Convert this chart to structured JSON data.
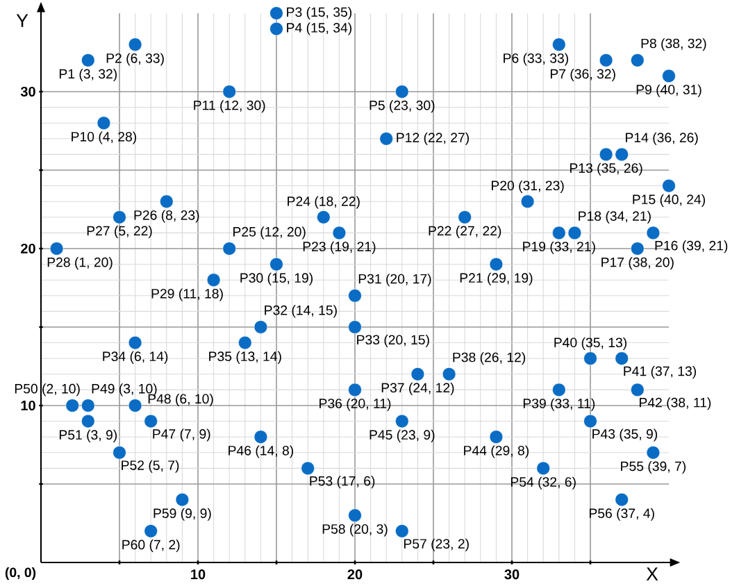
{
  "chart_data": {
    "type": "scatter",
    "xlabel": "X",
    "ylabel": "Y",
    "xlim": [
      0,
      40
    ],
    "ylim": [
      0,
      35
    ],
    "xticks": [
      {
        "value": 5,
        "label": null
      },
      10,
      {
        "value": 15,
        "label": null
      },
      20,
      {
        "value": 25,
        "label": null
      },
      30,
      {
        "value": 35,
        "label": null
      }
    ],
    "yticks": [
      {
        "value": 5,
        "label": null
      },
      10,
      {
        "value": 15,
        "label": null
      },
      20,
      {
        "value": 25,
        "label": null
      },
      30
    ],
    "grid": true,
    "marker": "circle",
    "series": [
      {
        "color": "#0a6cc4",
        "x": [
          3,
          6,
          15,
          15,
          23,
          33,
          36,
          38,
          40,
          4,
          12,
          22,
          36,
          37,
          40,
          39,
          38,
          34,
          33,
          31,
          29,
          27,
          19,
          18,
          12,
          8,
          5,
          1,
          11,
          15,
          20,
          14,
          20,
          6,
          13,
          20,
          24,
          26,
          33,
          35,
          37,
          38,
          35,
          29,
          23,
          14,
          7,
          6,
          3,
          2,
          3,
          5,
          17,
          32,
          39,
          37,
          23,
          20,
          9,
          7
        ],
        "values": [
          32,
          33,
          35,
          34,
          30,
          33,
          32,
          32,
          31,
          28,
          30,
          27,
          26,
          26,
          24,
          21,
          20,
          21,
          21,
          23,
          19,
          22,
          21,
          22,
          20,
          23,
          22,
          20,
          18,
          19,
          17,
          15,
          15,
          14,
          14,
          11,
          12,
          12,
          11,
          13,
          13,
          11,
          9,
          8,
          9,
          8,
          9,
          10,
          10,
          10,
          9,
          7,
          6,
          6,
          7,
          4,
          2,
          3,
          4,
          2
        ]
      }
    ],
    "annotations": [
      {
        "text": "P1 (3, 32)",
        "x": 3,
        "y": 32
      },
      {
        "text": "P2 (6, 33)",
        "x": 6,
        "y": 33
      },
      {
        "text": "P3 (15, 35)",
        "x": 15,
        "y": 35
      },
      {
        "text": "P4 (15, 34)",
        "x": 15,
        "y": 34
      },
      {
        "text": "P5 (23, 30)",
        "x": 23,
        "y": 30
      },
      {
        "text": "P6 (33, 33)",
        "x": 33,
        "y": 33
      },
      {
        "text": "P7 (36, 32)",
        "x": 36,
        "y": 32
      },
      {
        "text": "P8 (38, 32)",
        "x": 38,
        "y": 32
      },
      {
        "text": "P9 (40, 31)",
        "x": 40,
        "y": 31
      },
      {
        "text": "P10 (4, 28)",
        "x": 4,
        "y": 28
      },
      {
        "text": "P11 (12, 30)",
        "x": 12,
        "y": 30
      },
      {
        "text": "P12 (22, 27)",
        "x": 22,
        "y": 27
      },
      {
        "text": "P13 (35, 26)",
        "x": 36,
        "y": 26
      },
      {
        "text": "P14 (36, 26)",
        "x": 37,
        "y": 26
      },
      {
        "text": "P15 (40, 24)",
        "x": 40,
        "y": 24
      },
      {
        "text": "P16 (39, 21)",
        "x": 39,
        "y": 21
      },
      {
        "text": "P17 (38, 20)",
        "x": 38,
        "y": 20
      },
      {
        "text": "P18 (34, 21)",
        "x": 34,
        "y": 21
      },
      {
        "text": "P19 (33, 21)",
        "x": 33,
        "y": 21
      },
      {
        "text": "P20 (31, 23)",
        "x": 31,
        "y": 23
      },
      {
        "text": "P21 (29, 19)",
        "x": 29,
        "y": 19
      },
      {
        "text": "P22 (27, 22)",
        "x": 27,
        "y": 22
      },
      {
        "text": "P23 (19, 21)",
        "x": 19,
        "y": 21
      },
      {
        "text": "P24 (18, 22)",
        "x": 18,
        "y": 22
      },
      {
        "text": "P25 (12, 20)",
        "x": 12,
        "y": 20
      },
      {
        "text": "P26 (8, 23)",
        "x": 8,
        "y": 23
      },
      {
        "text": "P27 (5, 22)",
        "x": 5,
        "y": 22
      },
      {
        "text": "P28 (1, 20)",
        "x": 1,
        "y": 20
      },
      {
        "text": "P29 (11, 18)",
        "x": 11,
        "y": 18
      },
      {
        "text": "P30 (15, 19)",
        "x": 15,
        "y": 19
      },
      {
        "text": "P31 (20, 17)",
        "x": 20,
        "y": 17
      },
      {
        "text": "P32 (14, 15)",
        "x": 14,
        "y": 15
      },
      {
        "text": "P33 (20, 15)",
        "x": 20,
        "y": 15
      },
      {
        "text": "P34 (6, 14)",
        "x": 6,
        "y": 14
      },
      {
        "text": "P35 (13, 14)",
        "x": 13,
        "y": 14
      },
      {
        "text": "P36 (20, 11)",
        "x": 20,
        "y": 11
      },
      {
        "text": "P37 (24, 12)",
        "x": 24,
        "y": 12
      },
      {
        "text": "P38 (26, 12)",
        "x": 26,
        "y": 12
      },
      {
        "text": "P39 (33, 11)",
        "x": 33,
        "y": 11
      },
      {
        "text": "P40 (35, 13)",
        "x": 35,
        "y": 13
      },
      {
        "text": "P41 (37, 13)",
        "x": 37,
        "y": 13
      },
      {
        "text": "P42 (38, 11)",
        "x": 38,
        "y": 11
      },
      {
        "text": "P43 (35, 9)",
        "x": 35,
        "y": 9
      },
      {
        "text": "P44 (29, 8)",
        "x": 29,
        "y": 8
      },
      {
        "text": "P45 (23, 9)",
        "x": 23,
        "y": 9
      },
      {
        "text": "P46 (14, 8)",
        "x": 14,
        "y": 8
      },
      {
        "text": "P47 (7, 9)",
        "x": 7,
        "y": 9
      },
      {
        "text": "P48 (6, 10)",
        "x": 6,
        "y": 10
      },
      {
        "text": "P49 (3, 10)",
        "x": 3,
        "y": 10
      },
      {
        "text": "P50 (2, 10)",
        "x": 2,
        "y": 10
      },
      {
        "text": "P51 (3, 9)",
        "x": 3,
        "y": 9
      },
      {
        "text": "P52 (5, 7)",
        "x": 5,
        "y": 7
      },
      {
        "text": "P53 (17, 6)",
        "x": 17,
        "y": 6
      },
      {
        "text": "P54 (32, 6)",
        "x": 32,
        "y": 6
      },
      {
        "text": "P55 (39, 7)",
        "x": 39,
        "y": 7
      },
      {
        "text": "P56 (37, 4)",
        "x": 37,
        "y": 4
      },
      {
        "text": "P57 (23, 2)",
        "x": 23,
        "y": 2
      },
      {
        "text": "P58 (20, 3)",
        "x": 20,
        "y": 3
      },
      {
        "text": "P59 (9, 9)",
        "x": 9,
        "y": 4
      },
      {
        "text": "P60 (7, 2)",
        "x": 7,
        "y": 2
      },
      "(0, 0)"
    ]
  }
}
